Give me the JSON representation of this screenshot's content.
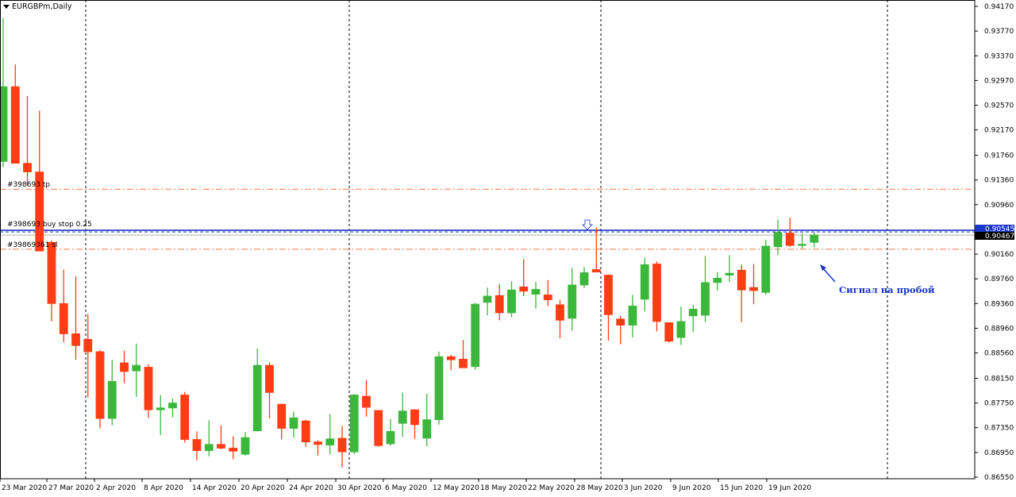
{
  "window": {
    "title": "EURGBPm,Daily"
  },
  "colors": {
    "bull": "#3cb73c",
    "bear": "#ff3d14",
    "tp_line": "#f4946e",
    "entry_line": "#1a35c9",
    "sl_line": "#f4946e",
    "grid": "#000000",
    "annotation": "#1a35c9"
  },
  "orders": {
    "tp_label": "#398693",
    "tp_suffix": "tp",
    "entry_label": "#398693",
    "entry_suffix": "buy stop 0.25",
    "sl_label": "#39869361 sl"
  },
  "price_tags": {
    "ask": "0.90545",
    "bid": "0.90467"
  },
  "annotation": {
    "text": "Сигнал на пробой"
  },
  "chart_data": {
    "type": "candlestick",
    "symbol": "EURGBPm",
    "timeframe": "Daily",
    "ylim": [
      0.8655,
      0.9417
    ],
    "y_ticks": [
      "0.94170",
      "0.93770",
      "0.93370",
      "0.92970",
      "0.92570",
      "0.92170",
      "0.91760",
      "0.91360",
      "0.90960",
      "0.90545",
      "0.90467",
      "0.90160",
      "0.89760",
      "0.89360",
      "0.88960",
      "0.88560",
      "0.88150",
      "0.87750",
      "0.87350",
      "0.86950",
      "0.86550"
    ],
    "x_ticks": [
      "23 Mar 2020",
      "27 Mar 2020",
      "2 Apr 2020",
      "8 Apr 2020",
      "14 Apr 2020",
      "20 Apr 2020",
      "24 Apr 2020",
      "30 Apr 2020",
      "6 May 2020",
      "12 May 2020",
      "18 May 2020",
      "22 May 2020",
      "28 May 2020",
      "3 Jun 2020",
      "9 Jun 2020",
      "15 Jun 2020",
      "19 Jun 2020"
    ],
    "levels": {
      "take_profit": 0.9121,
      "entry_buy_stop": 0.90545,
      "current_bid": 0.90467,
      "stop_loss": 0.9024
    },
    "candles": [
      {
        "o": 0.9166,
        "h": 0.9398,
        "l": 0.9157,
        "c": 0.9287
      },
      {
        "o": 0.9287,
        "h": 0.9323,
        "l": 0.917,
        "c": 0.9163
      },
      {
        "o": 0.9163,
        "h": 0.9272,
        "l": 0.9127,
        "c": 0.9149
      },
      {
        "o": 0.9149,
        "h": 0.9248,
        "l": 0.9024,
        "c": 0.9021
      },
      {
        "o": 0.9035,
        "h": 0.9038,
        "l": 0.8907,
        "c": 0.8936
      },
      {
        "o": 0.8936,
        "h": 0.8991,
        "l": 0.8873,
        "c": 0.8887
      },
      {
        "o": 0.8887,
        "h": 0.898,
        "l": 0.8845,
        "c": 0.8868
      },
      {
        "o": 0.8878,
        "h": 0.8919,
        "l": 0.8784,
        "c": 0.8858
      },
      {
        "o": 0.8858,
        "h": 0.8861,
        "l": 0.8734,
        "c": 0.875
      },
      {
        "o": 0.875,
        "h": 0.8845,
        "l": 0.8739,
        "c": 0.881
      },
      {
        "o": 0.884,
        "h": 0.886,
        "l": 0.8807,
        "c": 0.8826
      },
      {
        "o": 0.8827,
        "h": 0.8871,
        "l": 0.8785,
        "c": 0.8836
      },
      {
        "o": 0.8833,
        "h": 0.8838,
        "l": 0.8751,
        "c": 0.8764
      },
      {
        "o": 0.8764,
        "h": 0.8788,
        "l": 0.8723,
        "c": 0.8767
      },
      {
        "o": 0.8767,
        "h": 0.8782,
        "l": 0.8752,
        "c": 0.8775
      },
      {
        "o": 0.8788,
        "h": 0.8793,
        "l": 0.8711,
        "c": 0.8716
      },
      {
        "o": 0.8716,
        "h": 0.8729,
        "l": 0.8682,
        "c": 0.8698
      },
      {
        "o": 0.8698,
        "h": 0.8747,
        "l": 0.8689,
        "c": 0.8708
      },
      {
        "o": 0.8708,
        "h": 0.8739,
        "l": 0.87,
        "c": 0.8702
      },
      {
        "o": 0.8702,
        "h": 0.8721,
        "l": 0.8684,
        "c": 0.8697
      },
      {
        "o": 0.8692,
        "h": 0.8728,
        "l": 0.869,
        "c": 0.8719
      },
      {
        "o": 0.873,
        "h": 0.8863,
        "l": 0.8729,
        "c": 0.8836
      },
      {
        "o": 0.8836,
        "h": 0.8841,
        "l": 0.875,
        "c": 0.8792
      },
      {
        "o": 0.8773,
        "h": 0.8774,
        "l": 0.8716,
        "c": 0.8734
      },
      {
        "o": 0.8734,
        "h": 0.8761,
        "l": 0.8719,
        "c": 0.8751
      },
      {
        "o": 0.8746,
        "h": 0.8748,
        "l": 0.8704,
        "c": 0.8712
      },
      {
        "o": 0.8712,
        "h": 0.8715,
        "l": 0.869,
        "c": 0.8708
      },
      {
        "o": 0.8707,
        "h": 0.8757,
        "l": 0.8692,
        "c": 0.8717
      },
      {
        "o": 0.8718,
        "h": 0.8738,
        "l": 0.8671,
        "c": 0.8696
      },
      {
        "o": 0.8696,
        "h": 0.8789,
        "l": 0.8692,
        "c": 0.8788
      },
      {
        "o": 0.8786,
        "h": 0.8812,
        "l": 0.8753,
        "c": 0.8768
      },
      {
        "o": 0.8763,
        "h": 0.8763,
        "l": 0.8704,
        "c": 0.8706
      },
      {
        "o": 0.8709,
        "h": 0.8749,
        "l": 0.8706,
        "c": 0.8729
      },
      {
        "o": 0.8742,
        "h": 0.8792,
        "l": 0.872,
        "c": 0.8762
      },
      {
        "o": 0.8764,
        "h": 0.8765,
        "l": 0.8717,
        "c": 0.874
      },
      {
        "o": 0.8718,
        "h": 0.879,
        "l": 0.8705,
        "c": 0.8748
      },
      {
        "o": 0.8748,
        "h": 0.8858,
        "l": 0.874,
        "c": 0.885
      },
      {
        "o": 0.885,
        "h": 0.8853,
        "l": 0.8828,
        "c": 0.8845
      },
      {
        "o": 0.8846,
        "h": 0.8877,
        "l": 0.8832,
        "c": 0.8832
      },
      {
        "o": 0.8834,
        "h": 0.8937,
        "l": 0.8829,
        "c": 0.8935
      },
      {
        "o": 0.8938,
        "h": 0.8962,
        "l": 0.8917,
        "c": 0.8948
      },
      {
        "o": 0.8949,
        "h": 0.8967,
        "l": 0.8909,
        "c": 0.8921
      },
      {
        "o": 0.8921,
        "h": 0.8972,
        "l": 0.8914,
        "c": 0.8958
      },
      {
        "o": 0.8963,
        "h": 0.9008,
        "l": 0.8948,
        "c": 0.8956
      },
      {
        "o": 0.8951,
        "h": 0.8971,
        "l": 0.8928,
        "c": 0.8959
      },
      {
        "o": 0.895,
        "h": 0.8974,
        "l": 0.8932,
        "c": 0.8942
      },
      {
        "o": 0.8934,
        "h": 0.8942,
        "l": 0.888,
        "c": 0.8909
      },
      {
        "o": 0.8912,
        "h": 0.8994,
        "l": 0.8892,
        "c": 0.8966
      },
      {
        "o": 0.8966,
        "h": 0.8995,
        "l": 0.8961,
        "c": 0.8986
      },
      {
        "o": 0.8991,
        "h": 0.9059,
        "l": 0.8988,
        "c": 0.8987
      },
      {
        "o": 0.8982,
        "h": 0.8983,
        "l": 0.8876,
        "c": 0.8918
      },
      {
        "o": 0.8911,
        "h": 0.8916,
        "l": 0.887,
        "c": 0.8901
      },
      {
        "o": 0.8901,
        "h": 0.895,
        "l": 0.8881,
        "c": 0.8932
      },
      {
        "o": 0.8943,
        "h": 0.901,
        "l": 0.8923,
        "c": 0.8999
      },
      {
        "o": 0.9,
        "h": 0.9004,
        "l": 0.8891,
        "c": 0.8907
      },
      {
        "o": 0.8905,
        "h": 0.8905,
        "l": 0.8873,
        "c": 0.8875
      },
      {
        "o": 0.8881,
        "h": 0.8931,
        "l": 0.8869,
        "c": 0.8907
      },
      {
        "o": 0.8916,
        "h": 0.8934,
        "l": 0.889,
        "c": 0.8927
      },
      {
        "o": 0.8917,
        "h": 0.9013,
        "l": 0.8906,
        "c": 0.897
      },
      {
        "o": 0.897,
        "h": 0.8987,
        "l": 0.8957,
        "c": 0.8977
      },
      {
        "o": 0.8982,
        "h": 0.9014,
        "l": 0.8971,
        "c": 0.8985
      },
      {
        "o": 0.899,
        "h": 0.8999,
        "l": 0.8906,
        "c": 0.8958
      },
      {
        "o": 0.8962,
        "h": 0.9,
        "l": 0.8935,
        "c": 0.8957
      },
      {
        "o": 0.8954,
        "h": 0.9039,
        "l": 0.895,
        "c": 0.9029
      },
      {
        "o": 0.9028,
        "h": 0.9072,
        "l": 0.9014,
        "c": 0.9051
      },
      {
        "o": 0.905,
        "h": 0.9075,
        "l": 0.9028,
        "c": 0.903
      },
      {
        "o": 0.903,
        "h": 0.905,
        "l": 0.9025,
        "c": 0.9032
      },
      {
        "o": 0.9035,
        "h": 0.9051,
        "l": 0.9027,
        "c": 0.9047
      }
    ]
  }
}
